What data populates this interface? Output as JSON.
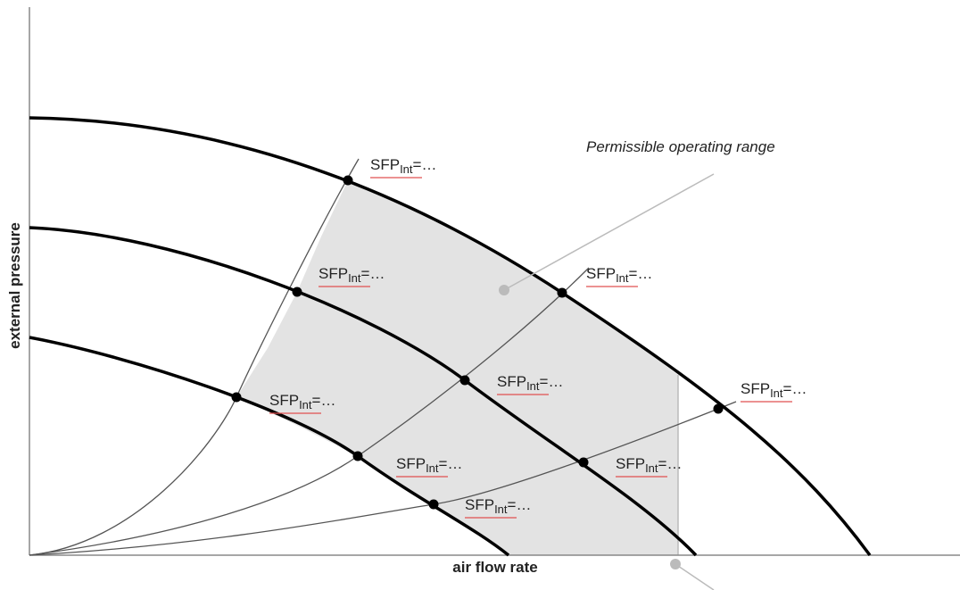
{
  "axes": {
    "x_label": "air flow rate",
    "y_label": "external pressure"
  },
  "annotation": "Permissible operating range",
  "labels": [
    {
      "text": "SFP",
      "sub": "Int",
      "tail": "=…"
    },
    {
      "text": "SFP",
      "sub": "Int",
      "tail": "=…"
    },
    {
      "text": "SFP",
      "sub": "Int",
      "tail": "=…"
    },
    {
      "text": "SFP",
      "sub": "Int",
      "tail": "=…"
    },
    {
      "text": "SFP",
      "sub": "Int",
      "tail": "=…"
    },
    {
      "text": "SFP",
      "sub": "Int",
      "tail": "=…"
    },
    {
      "text": "SFP",
      "sub": "Int",
      "tail": "=…"
    },
    {
      "text": "SFP",
      "sub": "Int",
      "tail": "=…"
    },
    {
      "text": "SFP",
      "sub": "Int",
      "tail": "=…"
    }
  ]
}
